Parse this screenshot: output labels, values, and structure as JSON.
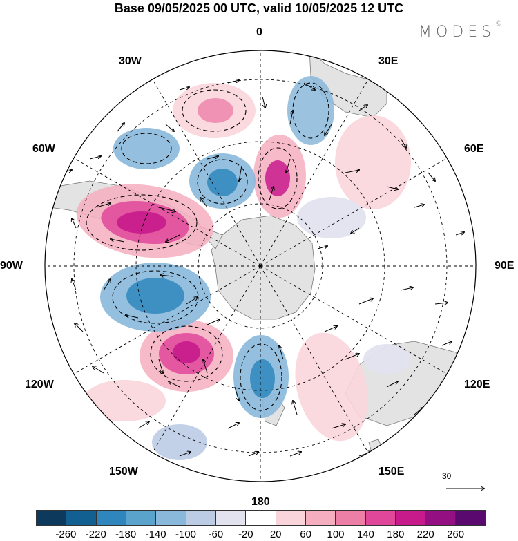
{
  "title": "Base 09/05/2025 00 UTC, valid 10/05/2025 12 UTC",
  "brand": {
    "name": "MODES",
    "mark": "©"
  },
  "longitude_labels": {
    "top": "0",
    "bottom": "180",
    "left": "90W",
    "right": "90E",
    "nw_upper": "30W",
    "nw_lower": "60W",
    "ne_upper": "30E",
    "ne_lower": "60E",
    "sw_upper": "120W",
    "sw_lower": "150W",
    "se_upper": "120E",
    "se_lower": "150E"
  },
  "reference_vector": {
    "label": "30"
  },
  "colorbar": {
    "colors": [
      "#0d3a5c",
      "#125f91",
      "#2f86bd",
      "#5aa3cc",
      "#8ab8da",
      "#bccce5",
      "#e3e3ef",
      "#ffffff",
      "#f9d5db",
      "#f4aebf",
      "#ed7fa7",
      "#e0479a",
      "#c71b8c",
      "#930f82",
      "#5a0a6e"
    ],
    "ticks": [
      "-260",
      "-220",
      "-180",
      "-140",
      "-100",
      "-60",
      "-20",
      "20",
      "60",
      "100",
      "140",
      "180",
      "220",
      "260"
    ]
  },
  "map_features": {
    "projection": "polar stereographic (south pole)",
    "anomaly_centers": [
      {
        "sign": "positive",
        "lon": "80W",
        "strength": "strong"
      },
      {
        "sign": "positive",
        "lon": "125W",
        "strength": "strong"
      },
      {
        "sign": "positive",
        "lon": "10E",
        "strength": "moderate"
      },
      {
        "sign": "negative",
        "lon": "45W",
        "strength": "moderate"
      },
      {
        "sign": "negative",
        "lon": "100W",
        "strength": "moderate"
      },
      {
        "sign": "negative",
        "lon": "165W",
        "strength": "moderate"
      }
    ]
  }
}
